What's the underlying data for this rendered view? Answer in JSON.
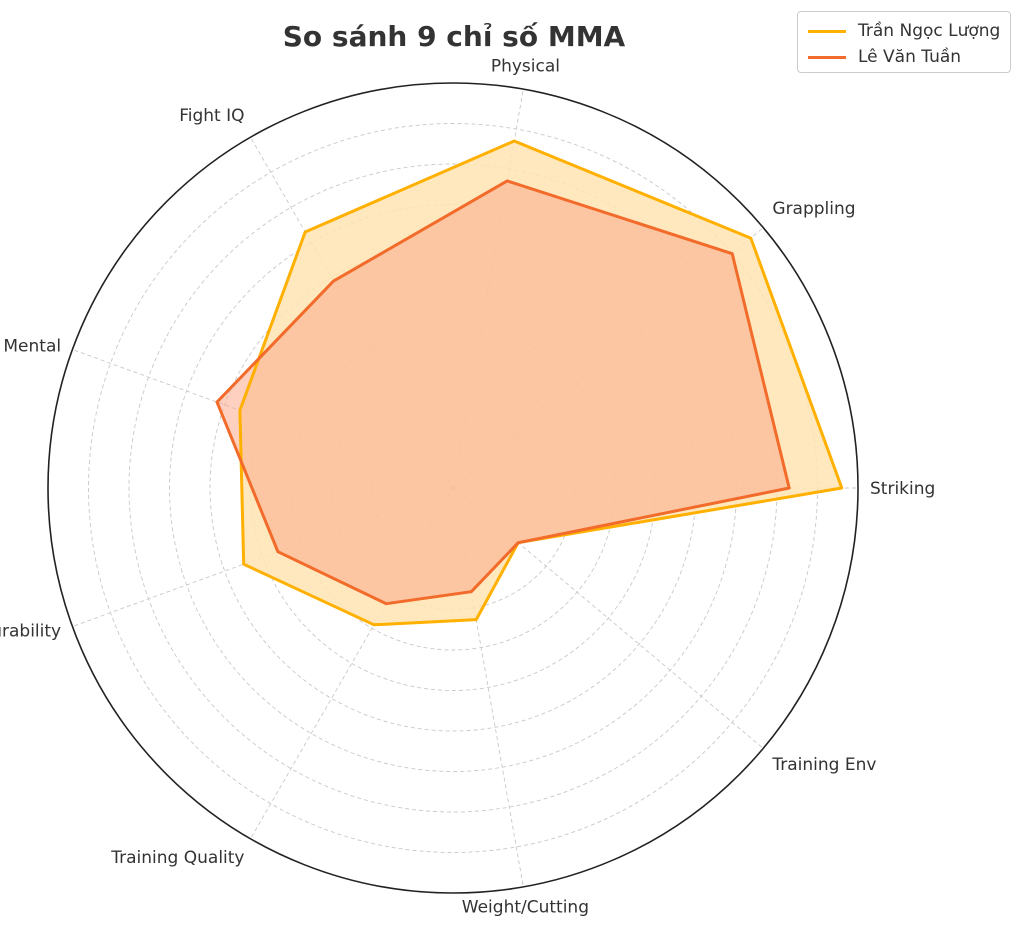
{
  "chart_data": {
    "type": "radar",
    "title": "So sánh 9 chỉ số MMA",
    "categories": [
      "Striking",
      "Grappling",
      "Physical",
      "Fight IQ",
      "Mental",
      "Durability",
      "Training Quality",
      "Weight/Cutting",
      "Training Env"
    ],
    "rlim": [
      0,
      10
    ],
    "grid": true,
    "legend": "top-right",
    "series": [
      {
        "name": "Trần Ngọc Lượng",
        "color": "#FFB000",
        "fill": "#FFE4B3",
        "values": [
          9.6,
          9.6,
          8.7,
          7.3,
          5.6,
          5.5,
          3.9,
          3.3,
          2.1
        ]
      },
      {
        "name": "Lê Văn Tuần",
        "color": "#F26B2A",
        "fill": "#FBA98A",
        "values": [
          8.3,
          9.0,
          7.7,
          5.9,
          6.2,
          4.6,
          3.3,
          2.6,
          2.1
        ]
      }
    ]
  }
}
